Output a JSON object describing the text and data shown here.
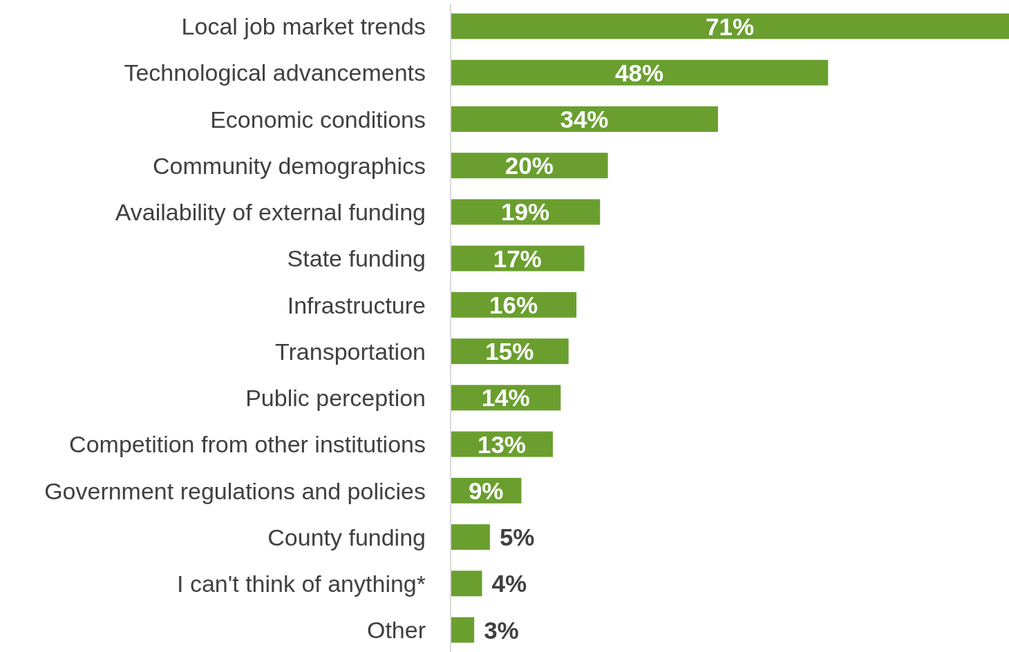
{
  "chart_data": {
    "type": "bar",
    "orientation": "horizontal",
    "categories": [
      "Local job market trends",
      "Technological advancements",
      "Economic conditions",
      "Community demographics",
      "Availability of external funding",
      "State funding",
      "Infrastructure",
      "Transportation",
      "Public perception",
      "Competition from other institutions",
      "Government regulations and policies",
      "County funding",
      "I can't think of anything*",
      "Other"
    ],
    "values": [
      71,
      48,
      34,
      20,
      19,
      17,
      16,
      15,
      14,
      13,
      9,
      5,
      4,
      3
    ],
    "value_labels": [
      "71%",
      "48%",
      "34%",
      "20%",
      "19%",
      "17%",
      "16%",
      "15%",
      "14%",
      "13%",
      "9%",
      "5%",
      "4%",
      "3%"
    ],
    "color": "#6a9f2f"
  }
}
